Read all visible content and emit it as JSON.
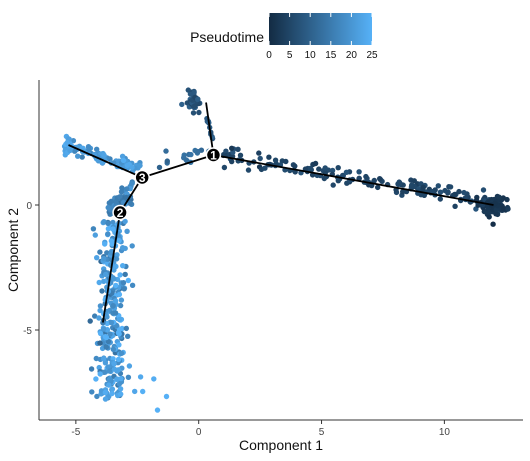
{
  "chart_data": {
    "type": "scatter",
    "title": "",
    "xlabel": "Component 1",
    "ylabel": "Component 2",
    "xlim": [
      -6.5,
      13.2
    ],
    "ylim": [
      -8.6,
      5.0
    ],
    "xticks": [
      -5,
      0,
      5,
      10
    ],
    "yticks": [
      -5,
      0
    ],
    "grid": false,
    "legend": {
      "title": "Pseudotime",
      "placement": "top",
      "min": 0,
      "max": 25,
      "ticks": [
        0,
        5,
        10,
        15,
        20,
        25
      ],
      "color_low": "#132b43",
      "color_high": "#56b1f7"
    },
    "trajectory_nodes": [
      {
        "label": "1",
        "x": 0.6,
        "y": 2.0
      },
      {
        "label": "2",
        "x": -3.2,
        "y": -0.3
      },
      {
        "label": "3",
        "x": -2.3,
        "y": 1.1
      }
    ],
    "trajectory_segments": [
      {
        "x": [
          12.0,
          0.6
        ],
        "y": [
          0.0,
          2.0
        ]
      },
      {
        "x": [
          0.6,
          0.3
        ],
        "y": [
          2.0,
          4.1
        ]
      },
      {
        "x": [
          0.6,
          -2.3
        ],
        "y": [
          2.0,
          1.1
        ]
      },
      {
        "x": [
          -2.3,
          -5.3
        ],
        "y": [
          1.1,
          2.4
        ]
      },
      {
        "x": [
          -2.3,
          -3.2
        ],
        "y": [
          1.1,
          -0.3
        ]
      },
      {
        "x": [
          -3.2,
          -3.9
        ],
        "y": [
          -0.3,
          -4.7
        ]
      }
    ],
    "clusters": [
      {
        "name": "right-arm",
        "n": 180,
        "x_range": [
          1.0,
          12.5
        ],
        "y_at_x0": 2.0,
        "y_at_x1": 0.0,
        "spread": 0.18,
        "pt": [
          5,
          1
        ]
      },
      {
        "name": "right-end-blob",
        "n": 70,
        "center": [
          12.0,
          0.0
        ],
        "sd": [
          0.3,
          0.18
        ],
        "pt": [
          2,
          0.5
        ]
      },
      {
        "name": "top-blob",
        "n": 45,
        "center": [
          -0.2,
          4.1
        ],
        "sd": [
          0.12,
          0.22
        ],
        "pt": [
          7,
          2
        ]
      },
      {
        "name": "top-stalk",
        "n": 10,
        "x_range": [
          0.3,
          0.6
        ],
        "y_at_x0": 3.6,
        "y_at_x1": 2.5,
        "spread": 0.08,
        "pt": [
          9,
          1
        ]
      },
      {
        "name": "node1-link",
        "n": 16,
        "x_range": [
          -1.6,
          0.5
        ],
        "y_at_x0": 1.7,
        "y_at_x1": 2.1,
        "spread": 0.18,
        "pt": [
          12,
          1
        ]
      },
      {
        "name": "left-arm",
        "n": 90,
        "x_range": [
          -5.4,
          -2.3
        ],
        "y_at_x0": 2.4,
        "y_at_x1": 1.4,
        "spread": 0.12,
        "pt": [
          20,
          2
        ]
      },
      {
        "name": "left-end-blob",
        "n": 22,
        "center": [
          -5.3,
          2.4
        ],
        "sd": [
          0.1,
          0.15
        ],
        "pt": [
          23,
          1
        ]
      },
      {
        "name": "lower-branch-top",
        "n": 55,
        "x_range": [
          -3.7,
          -2.7
        ],
        "y_at_x0": -0.2,
        "y_at_x1": 0.6,
        "spread": 0.22,
        "pt": [
          17,
          2
        ]
      },
      {
        "name": "lower-branch",
        "n": 300,
        "y_range": [
          -0.6,
          -7.8
        ],
        "x_at_y0": -3.5,
        "x_at_y1": -3.6,
        "spread": 0.28,
        "pt": [
          20,
          4
        ]
      },
      {
        "name": "lower-outliers",
        "n": 12,
        "center": [
          -2.6,
          -7.4
        ],
        "sd": [
          0.6,
          0.4
        ],
        "pt": [
          24,
          1
        ]
      }
    ]
  }
}
